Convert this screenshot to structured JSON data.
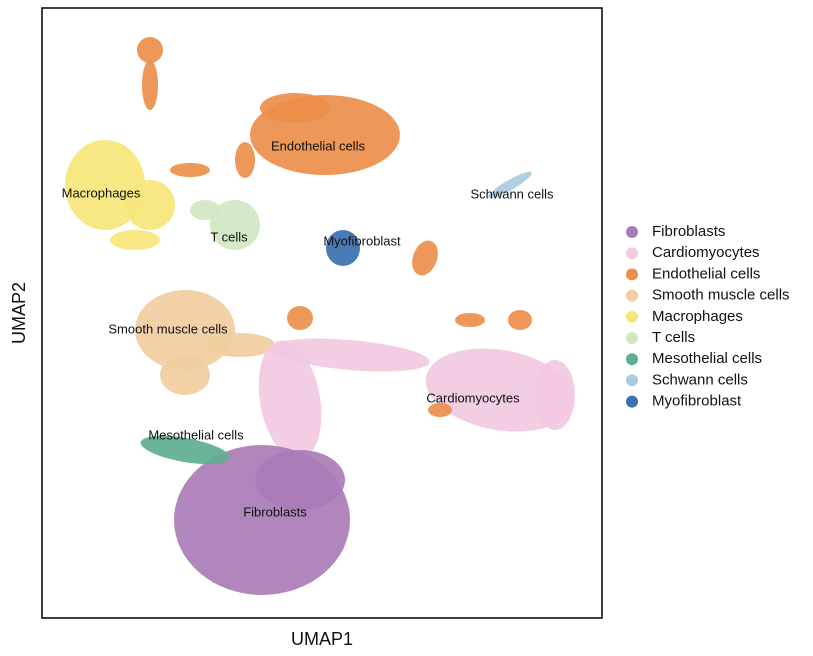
{
  "chart_data": {
    "type": "scatter",
    "xlabel": "UMAP1",
    "ylabel": "UMAP2",
    "series": [
      {
        "name": "Fibroblasts",
        "color": "#a97cb7"
      },
      {
        "name": "Cardiomyocytes",
        "color": "#f2c9df"
      },
      {
        "name": "Endothelial cells",
        "color": "#ec8e4a"
      },
      {
        "name": "Smooth muscle cells",
        "color": "#f1cda0"
      },
      {
        "name": "Macrophages",
        "color": "#f6e67a"
      },
      {
        "name": "T cells",
        "color": "#cfe7c2"
      },
      {
        "name": "Mesothelial cells",
        "color": "#5fae8f"
      },
      {
        "name": "Schwann cells",
        "color": "#abcbe0"
      },
      {
        "name": "Myofibroblast",
        "color": "#3b6fae"
      }
    ],
    "annotations": [
      "Endothelial cells",
      "Schwann cells",
      "Macrophages",
      "T cells",
      "Myofibroblast",
      "Smooth muscle cells",
      "Cardiomyocytes",
      "Mesothelial cells",
      "Fibroblasts"
    ],
    "legend": "right"
  }
}
